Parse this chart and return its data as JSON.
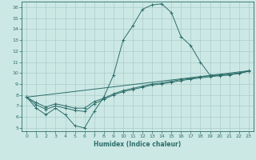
{
  "xlabel": "Humidex (Indice chaleur)",
  "xlim": [
    -0.5,
    23.5
  ],
  "ylim": [
    4.7,
    16.5
  ],
  "yticks": [
    5,
    6,
    7,
    8,
    9,
    10,
    11,
    12,
    13,
    14,
    15,
    16
  ],
  "xticks": [
    0,
    1,
    2,
    3,
    4,
    5,
    6,
    7,
    8,
    9,
    10,
    11,
    12,
    13,
    14,
    15,
    16,
    17,
    18,
    19,
    20,
    21,
    22,
    23
  ],
  "bg_color": "#cce8e5",
  "grid_color": "#aaccca",
  "line_color": "#2d6e6a",
  "curves": [
    {
      "x": [
        0,
        1,
        2,
        3,
        4,
        5,
        6,
        7,
        8,
        9,
        10,
        11,
        12,
        13,
        14,
        15,
        16,
        17,
        18,
        19,
        20,
        21,
        22,
        23
      ],
      "y": [
        7.8,
        6.8,
        6.2,
        6.8,
        6.2,
        5.2,
        5.0,
        6.5,
        7.8,
        9.8,
        13.0,
        14.3,
        15.8,
        16.2,
        16.3,
        15.5,
        13.3,
        12.5,
        11.0,
        9.8,
        9.8,
        9.8,
        10.0,
        10.2
      ],
      "has_marker": true
    },
    {
      "x": [
        0,
        23
      ],
      "y": [
        7.8,
        10.2
      ],
      "has_marker": false
    },
    {
      "x": [
        0,
        1,
        2,
        3,
        4,
        5,
        6,
        7,
        8,
        9,
        10,
        11,
        12,
        13,
        14,
        15,
        16,
        17,
        18,
        19,
        20,
        21,
        22,
        23
      ],
      "y": [
        7.8,
        7.1,
        6.7,
        7.0,
        6.8,
        6.6,
        6.5,
        7.2,
        7.6,
        8.0,
        8.3,
        8.5,
        8.7,
        8.9,
        9.0,
        9.15,
        9.3,
        9.45,
        9.55,
        9.65,
        9.75,
        9.85,
        9.95,
        10.15
      ],
      "has_marker": true
    },
    {
      "x": [
        0,
        1,
        2,
        3,
        4,
        5,
        6,
        7,
        8,
        9,
        10,
        11,
        12,
        13,
        14,
        15,
        16,
        17,
        18,
        19,
        20,
        21,
        22,
        23
      ],
      "y": [
        7.8,
        7.3,
        6.9,
        7.2,
        7.0,
        6.8,
        6.8,
        7.4,
        7.7,
        8.1,
        8.4,
        8.6,
        8.8,
        9.0,
        9.1,
        9.25,
        9.4,
        9.5,
        9.65,
        9.75,
        9.82,
        9.9,
        10.0,
        10.2
      ],
      "has_marker": true
    }
  ]
}
